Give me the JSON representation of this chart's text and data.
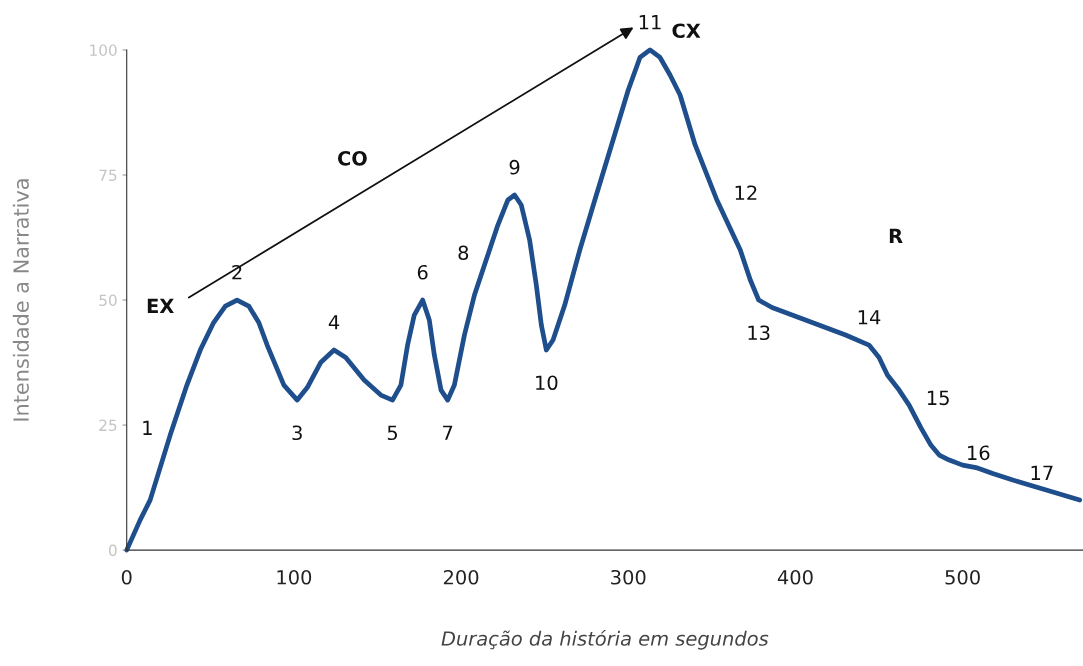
{
  "chart_data": {
    "type": "line",
    "xlabel": "Duração da história em segundos",
    "ylabel": "Intensidade a Narrativa",
    "x": [
      0,
      8,
      14,
      26,
      36,
      44,
      52,
      59,
      66,
      73,
      79,
      84,
      94,
      102,
      108,
      116,
      124,
      131,
      142,
      152,
      159,
      164,
      168,
      172,
      177,
      181,
      184,
      188,
      192,
      196,
      202,
      208,
      215,
      222,
      228,
      232,
      236,
      241,
      245,
      248,
      251,
      255,
      262,
      271,
      280,
      290,
      300,
      307,
      313,
      319,
      325,
      331,
      340,
      353,
      360,
      367,
      373,
      378,
      386,
      406,
      430,
      444,
      450,
      455,
      462,
      468,
      475,
      481,
      486,
      492,
      500,
      508,
      518,
      530,
      550,
      570
    ],
    "series": [
      {
        "color": "#1f4e8c",
        "values": [
          0,
          6,
          10,
          23,
          33,
          40,
          45.5,
          48.8,
          50,
          48.8,
          45.5,
          41,
          33,
          30,
          32.5,
          37.5,
          40,
          38.5,
          34,
          31,
          30,
          33,
          41,
          47,
          50,
          46,
          39,
          32,
          30,
          33,
          43,
          51,
          58,
          65,
          70,
          71,
          69,
          62,
          53,
          45,
          40,
          42,
          49,
          60,
          70,
          81,
          92,
          98.5,
          100,
          98.5,
          95,
          91,
          81,
          70,
          65,
          60,
          54,
          50,
          48.5,
          46,
          43,
          41,
          38.5,
          35,
          32,
          29,
          24.5,
          21,
          19,
          18,
          17,
          16.5,
          15.3,
          14,
          12,
          10
        ]
      }
    ],
    "xlim": [
      0,
      572
    ],
    "ylim": [
      0,
      100
    ],
    "xticks": [
      0,
      100,
      200,
      300,
      400,
      500
    ],
    "yticks": [
      0,
      25,
      50,
      75,
      100
    ],
    "grid": false,
    "marker": "none",
    "line_style": "solid",
    "annotations": [
      {
        "text": "1",
        "x": 26,
        "y": 23
      },
      {
        "text": "2",
        "x": 66,
        "y": 50
      },
      {
        "text": "3",
        "x": 102,
        "y": 30
      },
      {
        "text": "4",
        "x": 124,
        "y": 40
      },
      {
        "text": "5",
        "x": 159,
        "y": 30
      },
      {
        "text": "6",
        "x": 177,
        "y": 50
      },
      {
        "text": "7",
        "x": 192,
        "y": 30
      },
      {
        "text": "8",
        "x": 215,
        "y": 58
      },
      {
        "text": "9",
        "x": 232,
        "y": 71
      },
      {
        "text": "10",
        "x": 251,
        "y": 40
      },
      {
        "text": "11",
        "x": 313,
        "y": 100
      },
      {
        "text": "12",
        "x": 353,
        "y": 70
      },
      {
        "text": "13",
        "x": 378,
        "y": 50
      },
      {
        "text": "14",
        "x": 444,
        "y": 41
      },
      {
        "text": "15",
        "x": 468,
        "y": 29
      },
      {
        "text": "16",
        "x": 492,
        "y": 18
      },
      {
        "text": "17",
        "x": 530,
        "y": 14
      },
      "EX",
      "CO",
      "CX",
      "R"
    ]
  }
}
